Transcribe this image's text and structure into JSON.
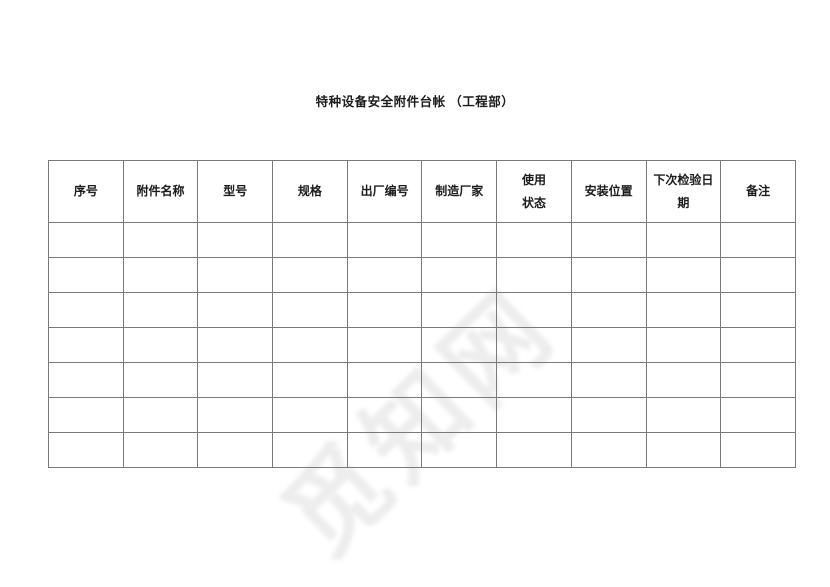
{
  "document": {
    "title": "特种设备安全附件台帐 （工程部）"
  },
  "table": {
    "columns": [
      {
        "key": "serial-number",
        "label": "序号"
      },
      {
        "key": "accessory-name",
        "label": "附件名称"
      },
      {
        "key": "model",
        "label": "型号"
      },
      {
        "key": "specification",
        "label": "规格"
      },
      {
        "key": "factory-number",
        "label": "出厂编号"
      },
      {
        "key": "manufacturer",
        "label": "制造厂家"
      },
      {
        "key": "usage-status",
        "label": "使用状态"
      },
      {
        "key": "installation-location",
        "label": "安装位置"
      },
      {
        "key": "next-inspection-date",
        "label": "下次检验日期"
      },
      {
        "key": "remarks",
        "label": "备注"
      }
    ],
    "empty_row_count": 7
  },
  "watermark": {
    "text": "觅知网"
  },
  "colors": {
    "background": "#ffffff",
    "text": "#1c1c1c",
    "border": "#7a7a7a",
    "watermark": "#ededed"
  }
}
